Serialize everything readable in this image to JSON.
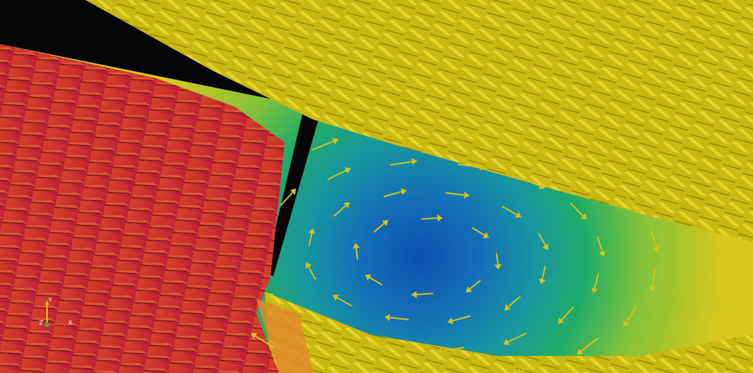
{
  "viewport": {
    "scene": "vector-field-glyphs",
    "colors": {
      "background": "#050505",
      "field_low": "#0d5fb8",
      "field_mid": "#1fae6a",
      "field_high": "#d9c51a",
      "glyph_yellow": "#d7c515",
      "glyph_red": "#d43a25",
      "glyph_crimson": "#c21f3a",
      "glyph_orange": "#e0892a"
    },
    "icons": [
      "orientation-axes-icon"
    ]
  },
  "orientation_axes": {
    "y_label": "Y",
    "z_label": "Z",
    "x_label": "X",
    "colors": {
      "y": "#e8c11a",
      "z": "#22c24a",
      "x": "#e03a2a"
    }
  }
}
